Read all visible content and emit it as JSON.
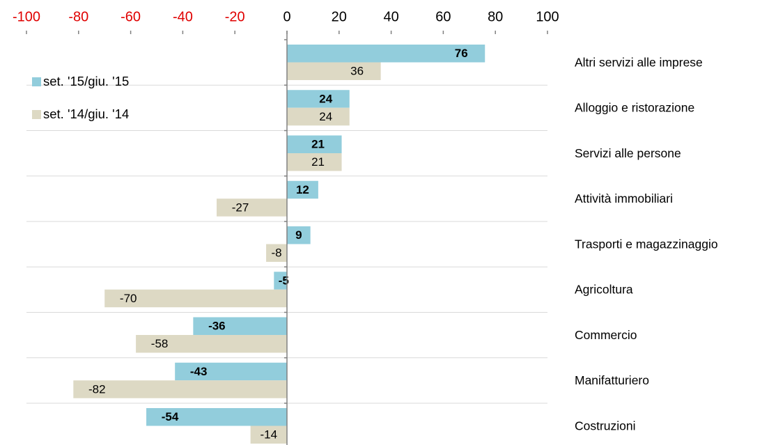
{
  "chart_data": {
    "type": "hbar",
    "categories": [
      "Altri servizi alle imprese",
      "Alloggio e ristorazione",
      "Servizi alle persone",
      "Attività immobiliari",
      "Trasporti e magazzinaggio",
      "Agricoltura",
      "Commercio",
      "Manifatturiero",
      "Costruzioni"
    ],
    "series": [
      {
        "name": "set. '15/giu. '15",
        "color": "#92cddc",
        "label_bold": true,
        "values": [
          76,
          24,
          21,
          12,
          9,
          -5,
          -36,
          -43,
          -54
        ]
      },
      {
        "name": "set. '14/giu. '14",
        "color": "#ddd9c4",
        "label_bold": false,
        "values": [
          36,
          24,
          21,
          -27,
          -8,
          -70,
          -58,
          -82,
          -14
        ]
      }
    ],
    "xlim": [
      -100,
      100
    ],
    "xticks": [
      -100,
      -80,
      -60,
      -40,
      -20,
      0,
      20,
      40,
      60,
      80,
      100
    ],
    "tick_color": "#000000",
    "negative_tick_color": "#e00000",
    "grid": true,
    "legend": "upper left"
  }
}
